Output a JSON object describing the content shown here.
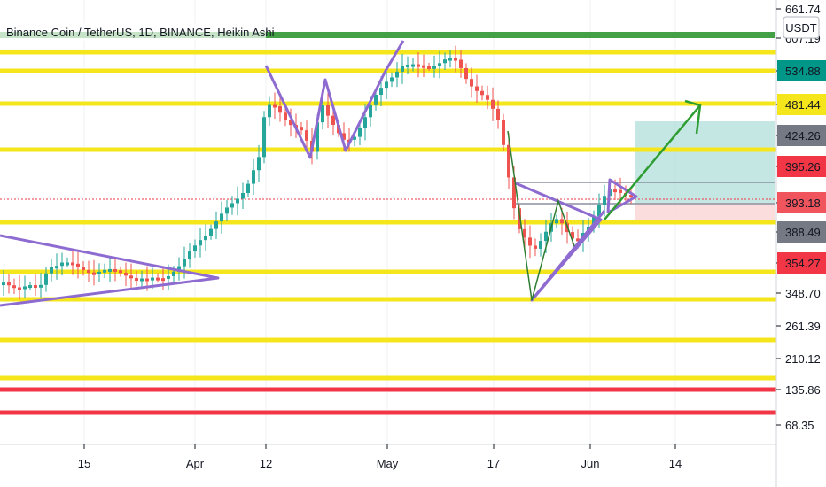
{
  "chart_data": {
    "type": "candlestick",
    "title": "Binance Coin / TetherUS, 1D, BINANCE, Heikin Ashi",
    "currency": "USDT",
    "price_labels": [
      {
        "value": "661.74",
        "style": "plain"
      },
      {
        "value": "607.19",
        "style": "plain"
      },
      {
        "value": "534.88",
        "style": "green"
      },
      {
        "value": "481.44",
        "style": "yellow"
      },
      {
        "value": "424.26",
        "style": "gray"
      },
      {
        "value": "395.26",
        "style": "red"
      },
      {
        "value": "393.18",
        "style": "pink"
      },
      {
        "value": "388.49",
        "style": "gray"
      },
      {
        "value": "354.27",
        "style": "red"
      },
      {
        "value": "348.70",
        "style": "plain"
      },
      {
        "value": "261.39",
        "style": "plain"
      },
      {
        "value": "210.12",
        "style": "plain"
      },
      {
        "value": "135.86",
        "style": "plain"
      },
      {
        "value": "68.35",
        "style": "plain"
      }
    ],
    "x_ticks": [
      "15",
      "Apr",
      "12",
      "May",
      "17",
      "Jun",
      "14"
    ],
    "horizontal_levels": [
      {
        "value": 607.19,
        "color": "#f5e61b"
      },
      {
        "value": 534.88,
        "color": "#f5e61b"
      },
      {
        "value": 481.44,
        "color": "#f5e61b"
      },
      {
        "value": 424.26,
        "color": "#f5e61b"
      },
      {
        "value": 388.49,
        "color": "#f5e61b"
      },
      {
        "value": 354.27,
        "color": "#f5e61b"
      },
      {
        "value": 348.7,
        "color": "#f5e61b"
      },
      {
        "value": 261.39,
        "color": "#f5e61b"
      },
      {
        "value": 210.12,
        "color": "#f5e61b"
      },
      {
        "value": 135.86,
        "color": "#f23645"
      },
      {
        "value": 68.35,
        "color": "#f23645"
      }
    ],
    "colors": {
      "up": "#26a69a",
      "down": "#ef5350",
      "pattern": "#8e6bd0",
      "arrow": "#2e9d32",
      "top_line": "#43a047",
      "level": "#f5e61b",
      "support": "#f23645"
    }
  }
}
